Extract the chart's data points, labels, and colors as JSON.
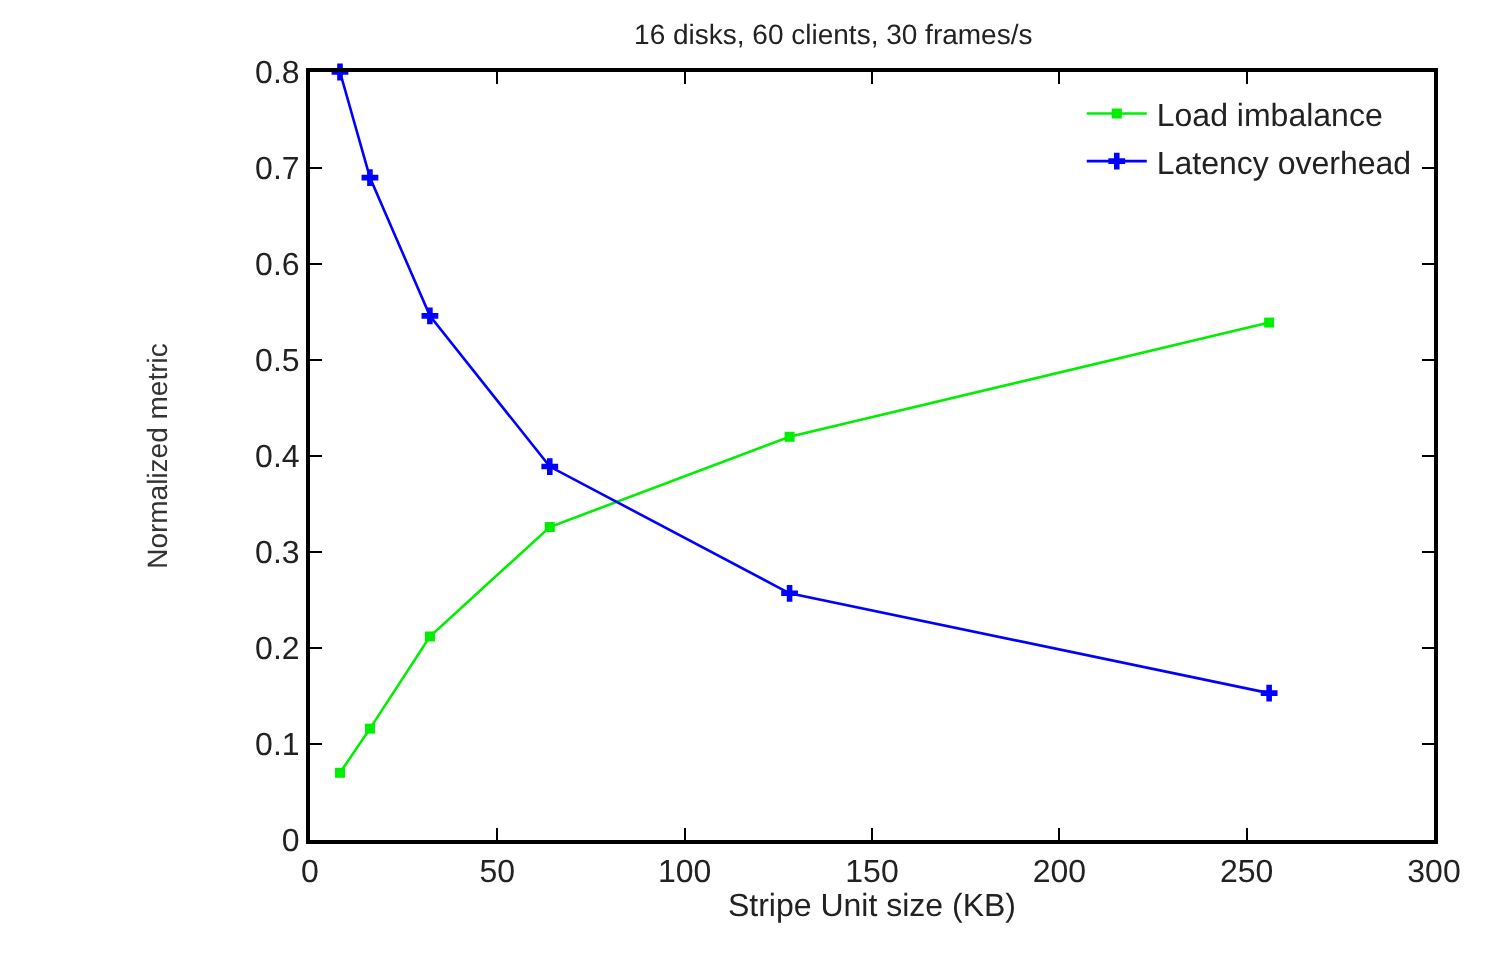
{
  "chart_data": {
    "type": "line",
    "title": "16 disks, 60 clients, 30 frames/s",
    "xlabel": "Stripe Unit size (KB)",
    "ylabel": "Normalized metric",
    "x": [
      8,
      16,
      32,
      64,
      128,
      256
    ],
    "series": [
      {
        "name": "Load imbalance",
        "color": "#00ee00",
        "marker": "square",
        "values": [
          0.07,
          0.116,
          0.212,
          0.326,
          0.42,
          0.539
        ]
      },
      {
        "name": "Latency overhead",
        "color": "#0000ff",
        "marker": "cross",
        "values": [
          0.8,
          0.69,
          0.546,
          0.389,
          0.257,
          0.153
        ]
      }
    ],
    "xlim": [
      0,
      300
    ],
    "xticks": [
      0,
      50,
      100,
      150,
      200,
      250,
      300
    ],
    "ylim": [
      0,
      0.8
    ],
    "yticks": [
      0,
      0.1,
      0.2,
      0.3,
      0.4,
      0.5,
      0.6,
      0.7,
      0.8
    ],
    "grid": false,
    "legend": "top right"
  }
}
